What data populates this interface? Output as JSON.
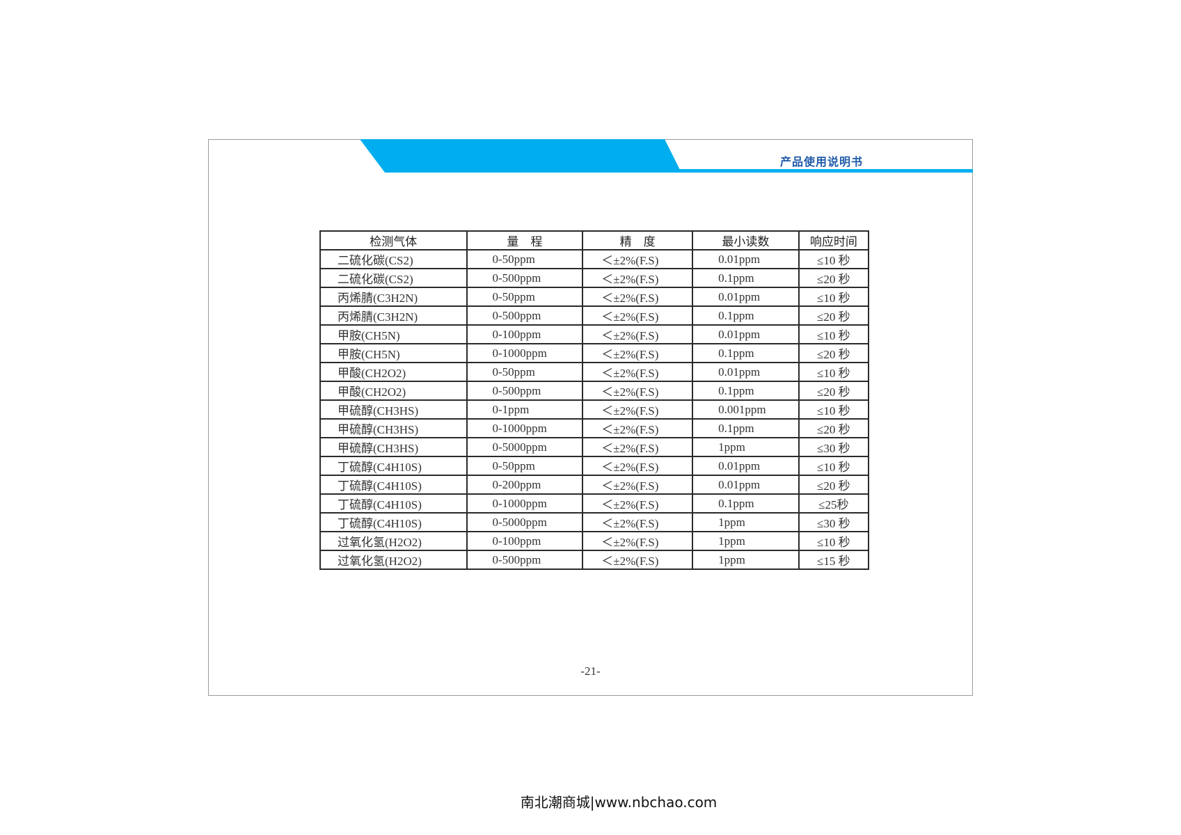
{
  "header": {
    "title": "产品使用说明书",
    "accent_color": "#00aeef",
    "title_color": "#1e5aa8"
  },
  "table": {
    "columns": [
      "检测气体",
      "量　程",
      "精　度",
      "最小读数",
      "响应时间"
    ],
    "rows": [
      [
        "二硫化碳(CS2)",
        "0-50ppm",
        "＜±2%(F.S)",
        "0.01ppm",
        "≤10 秒"
      ],
      [
        "二硫化碳(CS2)",
        "0-500ppm",
        "＜±2%(F.S)",
        "0.1ppm",
        "≤20 秒"
      ],
      [
        "丙烯腈(C3H2N)",
        "0-50ppm",
        "＜±2%(F.S)",
        "0.01ppm",
        "≤10 秒"
      ],
      [
        "丙烯腈(C3H2N)",
        "0-500ppm",
        "＜±2%(F.S)",
        "0.1ppm",
        "≤20 秒"
      ],
      [
        "甲胺(CH5N)",
        "0-100ppm",
        "＜±2%(F.S)",
        "0.01ppm",
        "≤10 秒"
      ],
      [
        "甲胺(CH5N)",
        "0-1000ppm",
        "＜±2%(F.S)",
        "0.1ppm",
        "≤20 秒"
      ],
      [
        "甲酸(CH2O2)",
        "0-50ppm",
        "＜±2%(F.S)",
        "0.01ppm",
        "≤10 秒"
      ],
      [
        "甲酸(CH2O2)",
        "0-500ppm",
        "＜±2%(F.S)",
        "0.1ppm",
        "≤20 秒"
      ],
      [
        "甲硫醇(CH3HS)",
        "0-1ppm",
        "＜±2%(F.S)",
        "0.001ppm",
        "≤10 秒"
      ],
      [
        "甲硫醇(CH3HS)",
        "0-1000ppm",
        "＜±2%(F.S)",
        "0.1ppm",
        "≤20 秒"
      ],
      [
        "甲硫醇(CH3HS)",
        "0-5000ppm",
        "＜±2%(F.S)",
        "1ppm",
        "≤30 秒"
      ],
      [
        "丁硫醇(C4H10S)",
        "0-50ppm",
        "＜±2%(F.S)",
        "0.01ppm",
        "≤10 秒"
      ],
      [
        "丁硫醇(C4H10S)",
        "0-200ppm",
        "＜±2%(F.S)",
        "0.01ppm",
        "≤20 秒"
      ],
      [
        "丁硫醇(C4H10S)",
        "0-1000ppm",
        "＜±2%(F.S)",
        "0.1ppm",
        "≤25秒"
      ],
      [
        "丁硫醇(C4H10S)",
        "0-5000ppm",
        "＜±2%(F.S)",
        "1ppm",
        "≤30 秒"
      ],
      [
        "过氧化氢(H2O2)",
        "0-100ppm",
        "＜±2%(F.S)",
        "1ppm",
        "≤10 秒"
      ],
      [
        "过氧化氢(H2O2)",
        "0-500ppm",
        "＜±2%(F.S)",
        "1ppm",
        "≤15 秒"
      ]
    ]
  },
  "page_number": "-21-",
  "footer": "南北潮商城|www.nbchao.com"
}
